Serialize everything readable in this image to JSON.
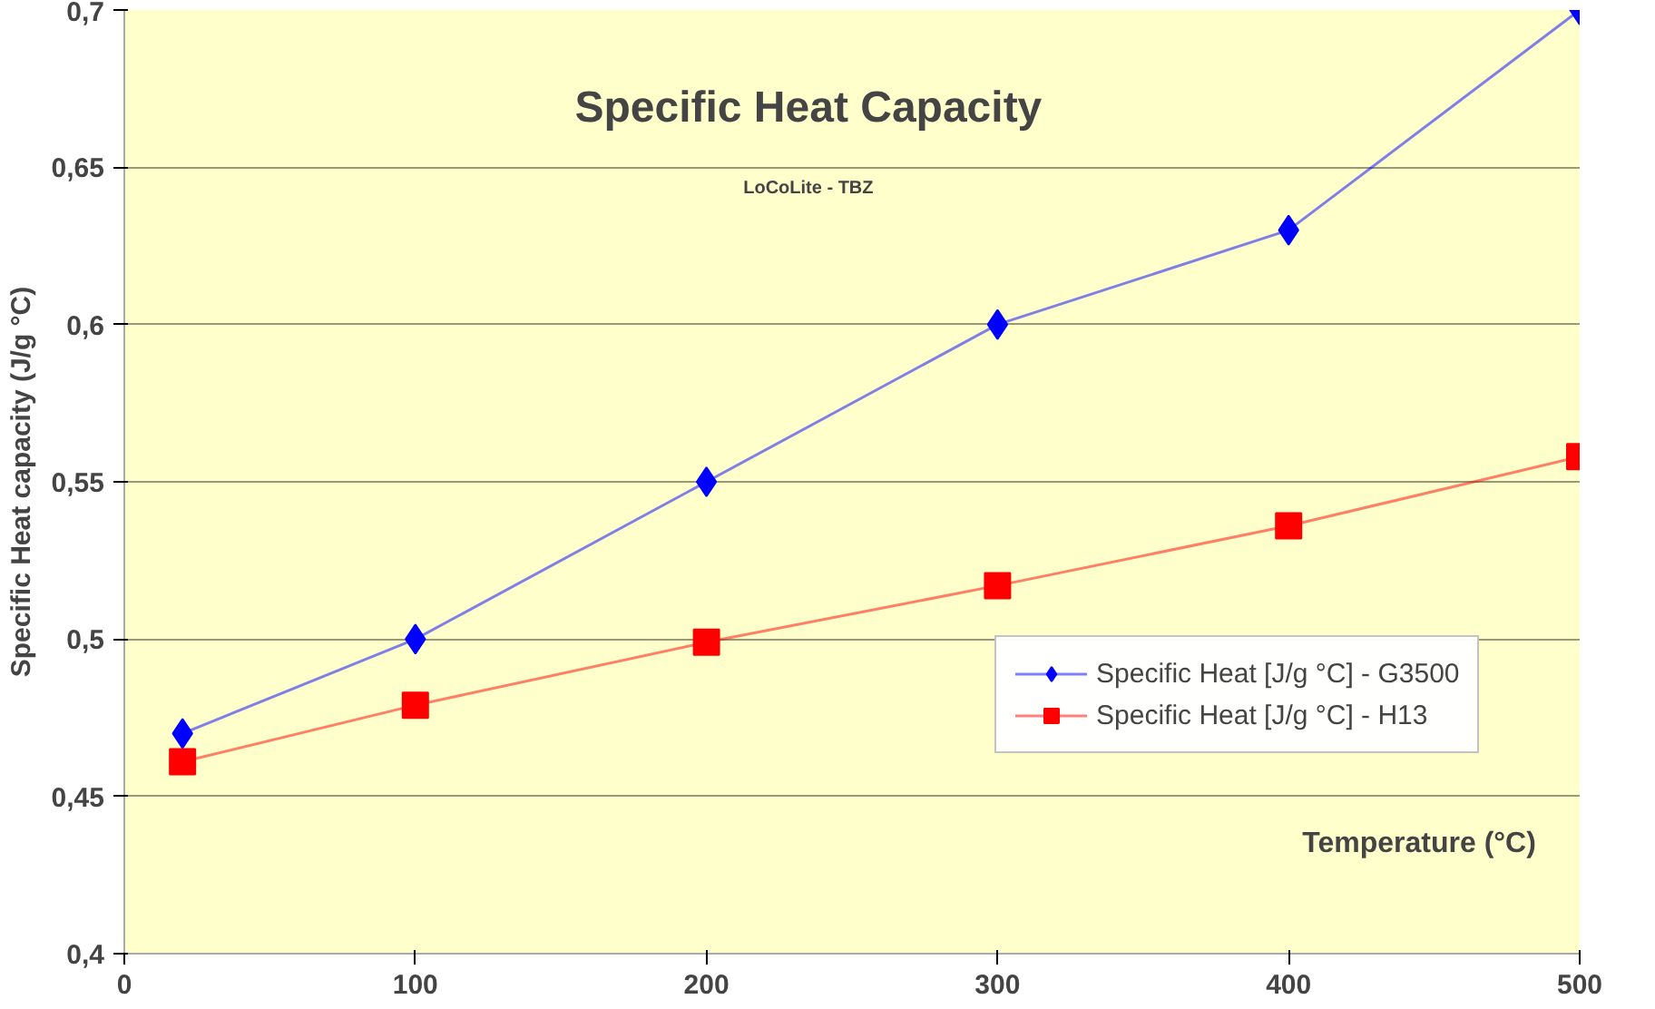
{
  "chart_data": {
    "type": "line",
    "title": "Specific Heat Capacity",
    "subtitle": "LoCoLite - TBZ",
    "xlabel": "Temperature (°C)",
    "ylabel": "Specific Heat capacity (J/g °C)",
    "x": [
      20,
      100,
      200,
      300,
      400,
      500
    ],
    "series": [
      {
        "name": "Specific Heat [J/g °C] - G3500",
        "color": "#0000ff",
        "marker": "diamond",
        "values": [
          0.47,
          0.5,
          0.55,
          0.6,
          0.63,
          0.7
        ]
      },
      {
        "name": "Specific Heat [J/g °C] - H13",
        "color": "#ff0000",
        "marker": "square",
        "values": [
          0.461,
          0.479,
          0.499,
          0.517,
          0.536,
          0.558
        ]
      }
    ],
    "xlim": [
      0,
      500
    ],
    "xticks": [
      0,
      100,
      200,
      300,
      400,
      500
    ],
    "ylim": [
      0.4,
      0.7
    ],
    "yticks": [
      {
        "value": 0.4,
        "label": "0,4"
      },
      {
        "value": 0.45,
        "label": "0,45"
      },
      {
        "value": 0.5,
        "label": "0,5"
      },
      {
        "value": 0.55,
        "label": "0,55"
      },
      {
        "value": 0.6,
        "label": "0,6"
      },
      {
        "value": 0.65,
        "label": "0,65"
      },
      {
        "value": 0.7,
        "label": "0,7"
      }
    ],
    "grid": "y",
    "legend": "right"
  }
}
